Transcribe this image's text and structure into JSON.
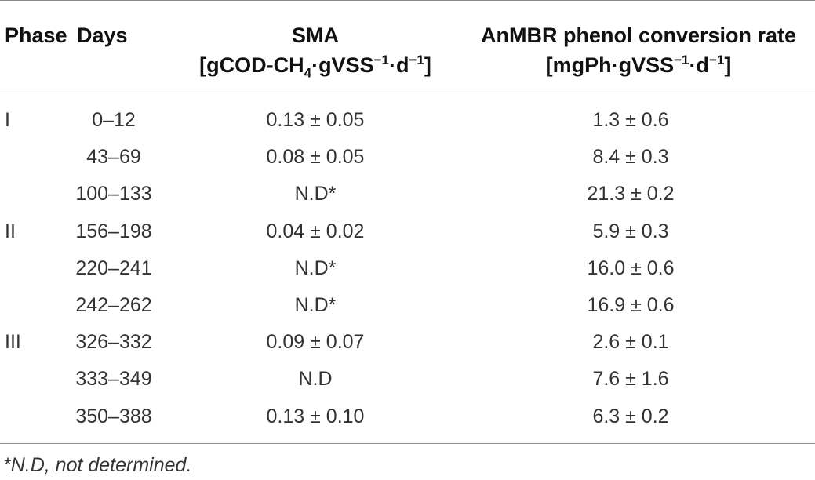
{
  "table": {
    "headers": {
      "phase": "Phase",
      "days": "Days",
      "sma_line1": "SMA",
      "sma_line2_a": "[gCOD-CH",
      "sma_line2_sub": "4",
      "sma_line2_b": "·gVSS",
      "sma_line2_sup1": "−1",
      "sma_line2_c": "·d",
      "sma_line2_sup2": "−1",
      "sma_line2_d": "]",
      "rate_line1": "AnMBR phenol conversion rate",
      "rate_line2_a": "[mgPh·gVSS",
      "rate_line2_sup1": "−1",
      "rate_line2_b": "·d",
      "rate_line2_sup2": "−1",
      "rate_line2_c": "]"
    },
    "rows": [
      {
        "phase": "I",
        "days": "0–12",
        "sma": "0.13 ± 0.05",
        "rate": "1.3 ± 0.6"
      },
      {
        "phase": "",
        "days": "43–69",
        "sma": "0.08 ± 0.05",
        "rate": "8.4 ± 0.3"
      },
      {
        "phase": "",
        "days": "100–133",
        "sma": "N.D*",
        "rate": "21.3 ± 0.2"
      },
      {
        "phase": "II",
        "days": "156–198",
        "sma": "0.04 ± 0.02",
        "rate": "5.9 ± 0.3"
      },
      {
        "phase": "",
        "days": "220–241",
        "sma": "N.D*",
        "rate": "16.0 ± 0.6"
      },
      {
        "phase": "",
        "days": "242–262",
        "sma": "N.D*",
        "rate": "16.9 ± 0.6"
      },
      {
        "phase": "III",
        "days": "326–332",
        "sma": "0.09 ± 0.07",
        "rate": "2.6 ± 0.1"
      },
      {
        "phase": "",
        "days": "333–349",
        "sma": "N.D",
        "rate": "7.6 ± 1.6"
      },
      {
        "phase": "",
        "days": "350–388",
        "sma": "0.13 ± 0.10",
        "rate": "6.3 ± 0.2"
      }
    ]
  },
  "footnote": "*N.D, not determined."
}
